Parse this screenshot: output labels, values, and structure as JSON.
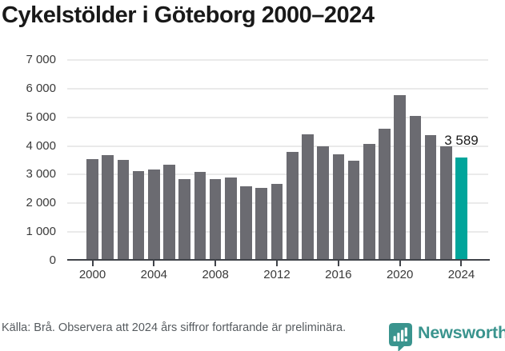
{
  "title": "Cykelstölder i Göteborg 2000–2024",
  "chart_data": {
    "type": "bar",
    "title": "Cykelstölder i Göteborg 2000–2024",
    "xlabel": "",
    "ylabel": "",
    "categories": [
      2000,
      2001,
      2002,
      2003,
      2004,
      2005,
      2006,
      2007,
      2008,
      2009,
      2010,
      2011,
      2012,
      2013,
      2014,
      2015,
      2016,
      2017,
      2018,
      2019,
      2020,
      2021,
      2022,
      2023,
      2024
    ],
    "values": [
      3550,
      3685,
      3525,
      3130,
      3190,
      3360,
      2850,
      3100,
      2850,
      2895,
      2590,
      2540,
      2680,
      3780,
      4405,
      3985,
      3705,
      3500,
      4060,
      4615,
      5760,
      5050,
      4380,
      3985,
      3589
    ],
    "highlight_category": 2024,
    "highlight_value_label": "3 589",
    "ylim": [
      0,
      7000
    ],
    "ytick_step": 1000,
    "ytick_labels": [
      "0",
      "1 000",
      "2 000",
      "3 000",
      "4 000",
      "5 000",
      "6 000",
      "7 000"
    ],
    "xticks": [
      2000,
      2004,
      2008,
      2012,
      2016,
      2020,
      2024
    ],
    "grid": true,
    "legend": "none",
    "bar_color": "#6b6b71",
    "highlight_color": "#00a59b"
  },
  "footer": {
    "source_text": "Källa: Brå. Observera att 2024 års siffror fortfarande är preliminära.",
    "brand_name": "Newsworthy"
  },
  "icons": {
    "brand_logo": "newsworthy-speech-bubble-bar-chart-icon"
  },
  "colors": {
    "bar_gray": "#6b6b71",
    "highlight_teal": "#00a59b",
    "brand_teal": "#3a948e",
    "axis": "#404349",
    "gridline": "#eaeaea",
    "text_dark": "#191919",
    "text_muted": "#565b5f"
  }
}
